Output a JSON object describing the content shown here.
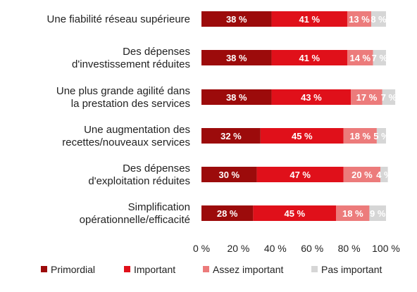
{
  "chart_data": {
    "type": "bar",
    "orientation": "horizontal",
    "stacked": true,
    "categories": [
      [
        "Une fiabilité réseau supérieure"
      ],
      [
        "Des dépenses",
        "d'investissement réduites"
      ],
      [
        "Une plus grande agilité dans",
        "la prestation des services"
      ],
      [
        "Une augmentation des",
        "recettes/nouveaux services"
      ],
      [
        "Des dépenses",
        "d'exploitation réduites"
      ],
      [
        "Simplification",
        "opérationnelle/efficacité"
      ]
    ],
    "series": [
      {
        "name": "Primordial",
        "color": "#9c0b0b",
        "values": [
          38,
          38,
          38,
          32,
          30,
          28
        ]
      },
      {
        "name": "Important",
        "color": "#e0101a",
        "values": [
          41,
          41,
          43,
          45,
          47,
          45
        ]
      },
      {
        "name": "Assez important",
        "color": "#ec7b7b",
        "values": [
          13,
          14,
          17,
          18,
          20,
          18
        ]
      },
      {
        "name": "Pas important",
        "color": "#d6d6d6",
        "values": [
          8,
          7,
          7,
          5,
          4,
          9
        ]
      }
    ],
    "value_suffix": " %",
    "xlim": [
      0,
      100
    ],
    "xticks": [
      "0 %",
      "20 %",
      "40 %",
      "60 %",
      "80 %",
      "100 %"
    ],
    "legend_position": "bottom",
    "grid": false
  }
}
